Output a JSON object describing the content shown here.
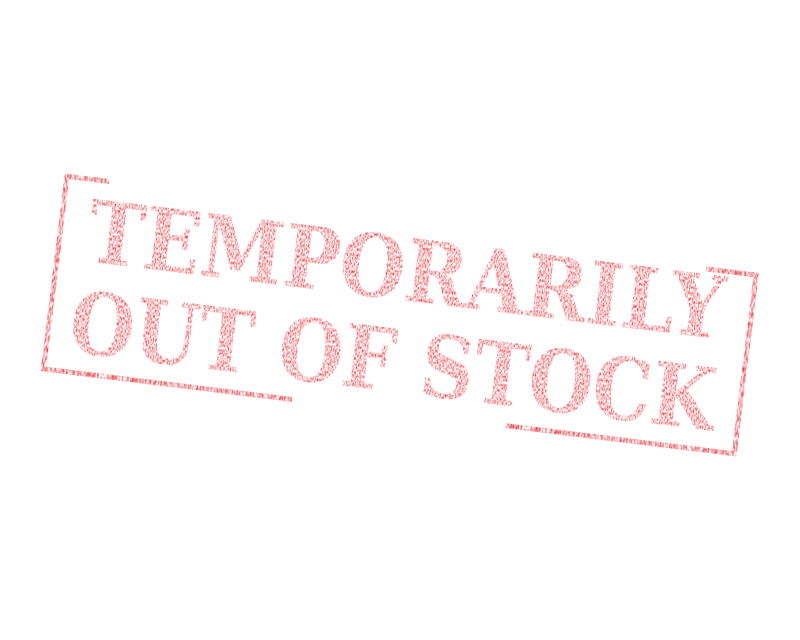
{
  "stamp": {
    "line1": "TEMPORARILY",
    "line2": "OUT OF STOCK",
    "color": "#e8232b",
    "style": "grunge rubber stamp",
    "rotation_deg": 7
  }
}
